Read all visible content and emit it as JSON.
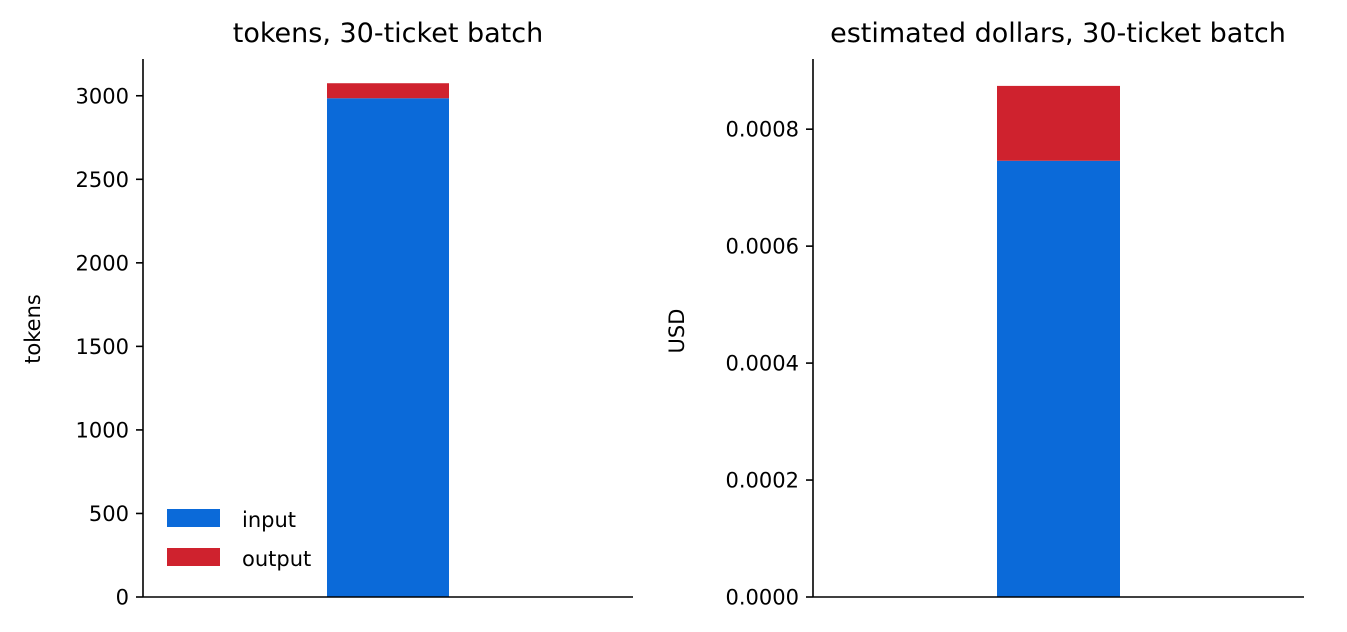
{
  "chart_data": [
    {
      "type": "bar",
      "stacked": true,
      "title": "tokens, 30-ticket batch",
      "xlabel": "",
      "ylabel": "tokens",
      "categories": [
        ""
      ],
      "ylim": [
        0,
        3220
      ],
      "yticks": [
        0,
        500,
        1000,
        1500,
        2000,
        2500,
        3000
      ],
      "ytick_labels": [
        "0",
        "500",
        "1000",
        "1500",
        "2000",
        "2500",
        "3000"
      ],
      "series": [
        {
          "name": "input",
          "values": [
            2985
          ],
          "color": "#0b6ad9"
        },
        {
          "name": "output",
          "values": [
            90
          ],
          "color": "#cf222e"
        }
      ],
      "legend": {
        "placement": "lower-left",
        "entries": [
          "input",
          "output"
        ]
      },
      "grid": false
    },
    {
      "type": "bar",
      "stacked": true,
      "title": "estimated dollars, 30-ticket batch",
      "xlabel": "",
      "ylabel": "USD",
      "categories": [
        ""
      ],
      "ylim": [
        0,
        0.00092
      ],
      "yticks": [
        0,
        0.0002,
        0.0004,
        0.0006,
        0.0008
      ],
      "ytick_labels": [
        "0.0000",
        "0.0002",
        "0.0004",
        "0.0006",
        "0.0008"
      ],
      "series": [
        {
          "name": "input",
          "values": [
            0.000746
          ],
          "color": "#0b6ad9"
        },
        {
          "name": "output",
          "values": [
            0.000128
          ],
          "color": "#cf222e"
        }
      ],
      "grid": false
    }
  ]
}
